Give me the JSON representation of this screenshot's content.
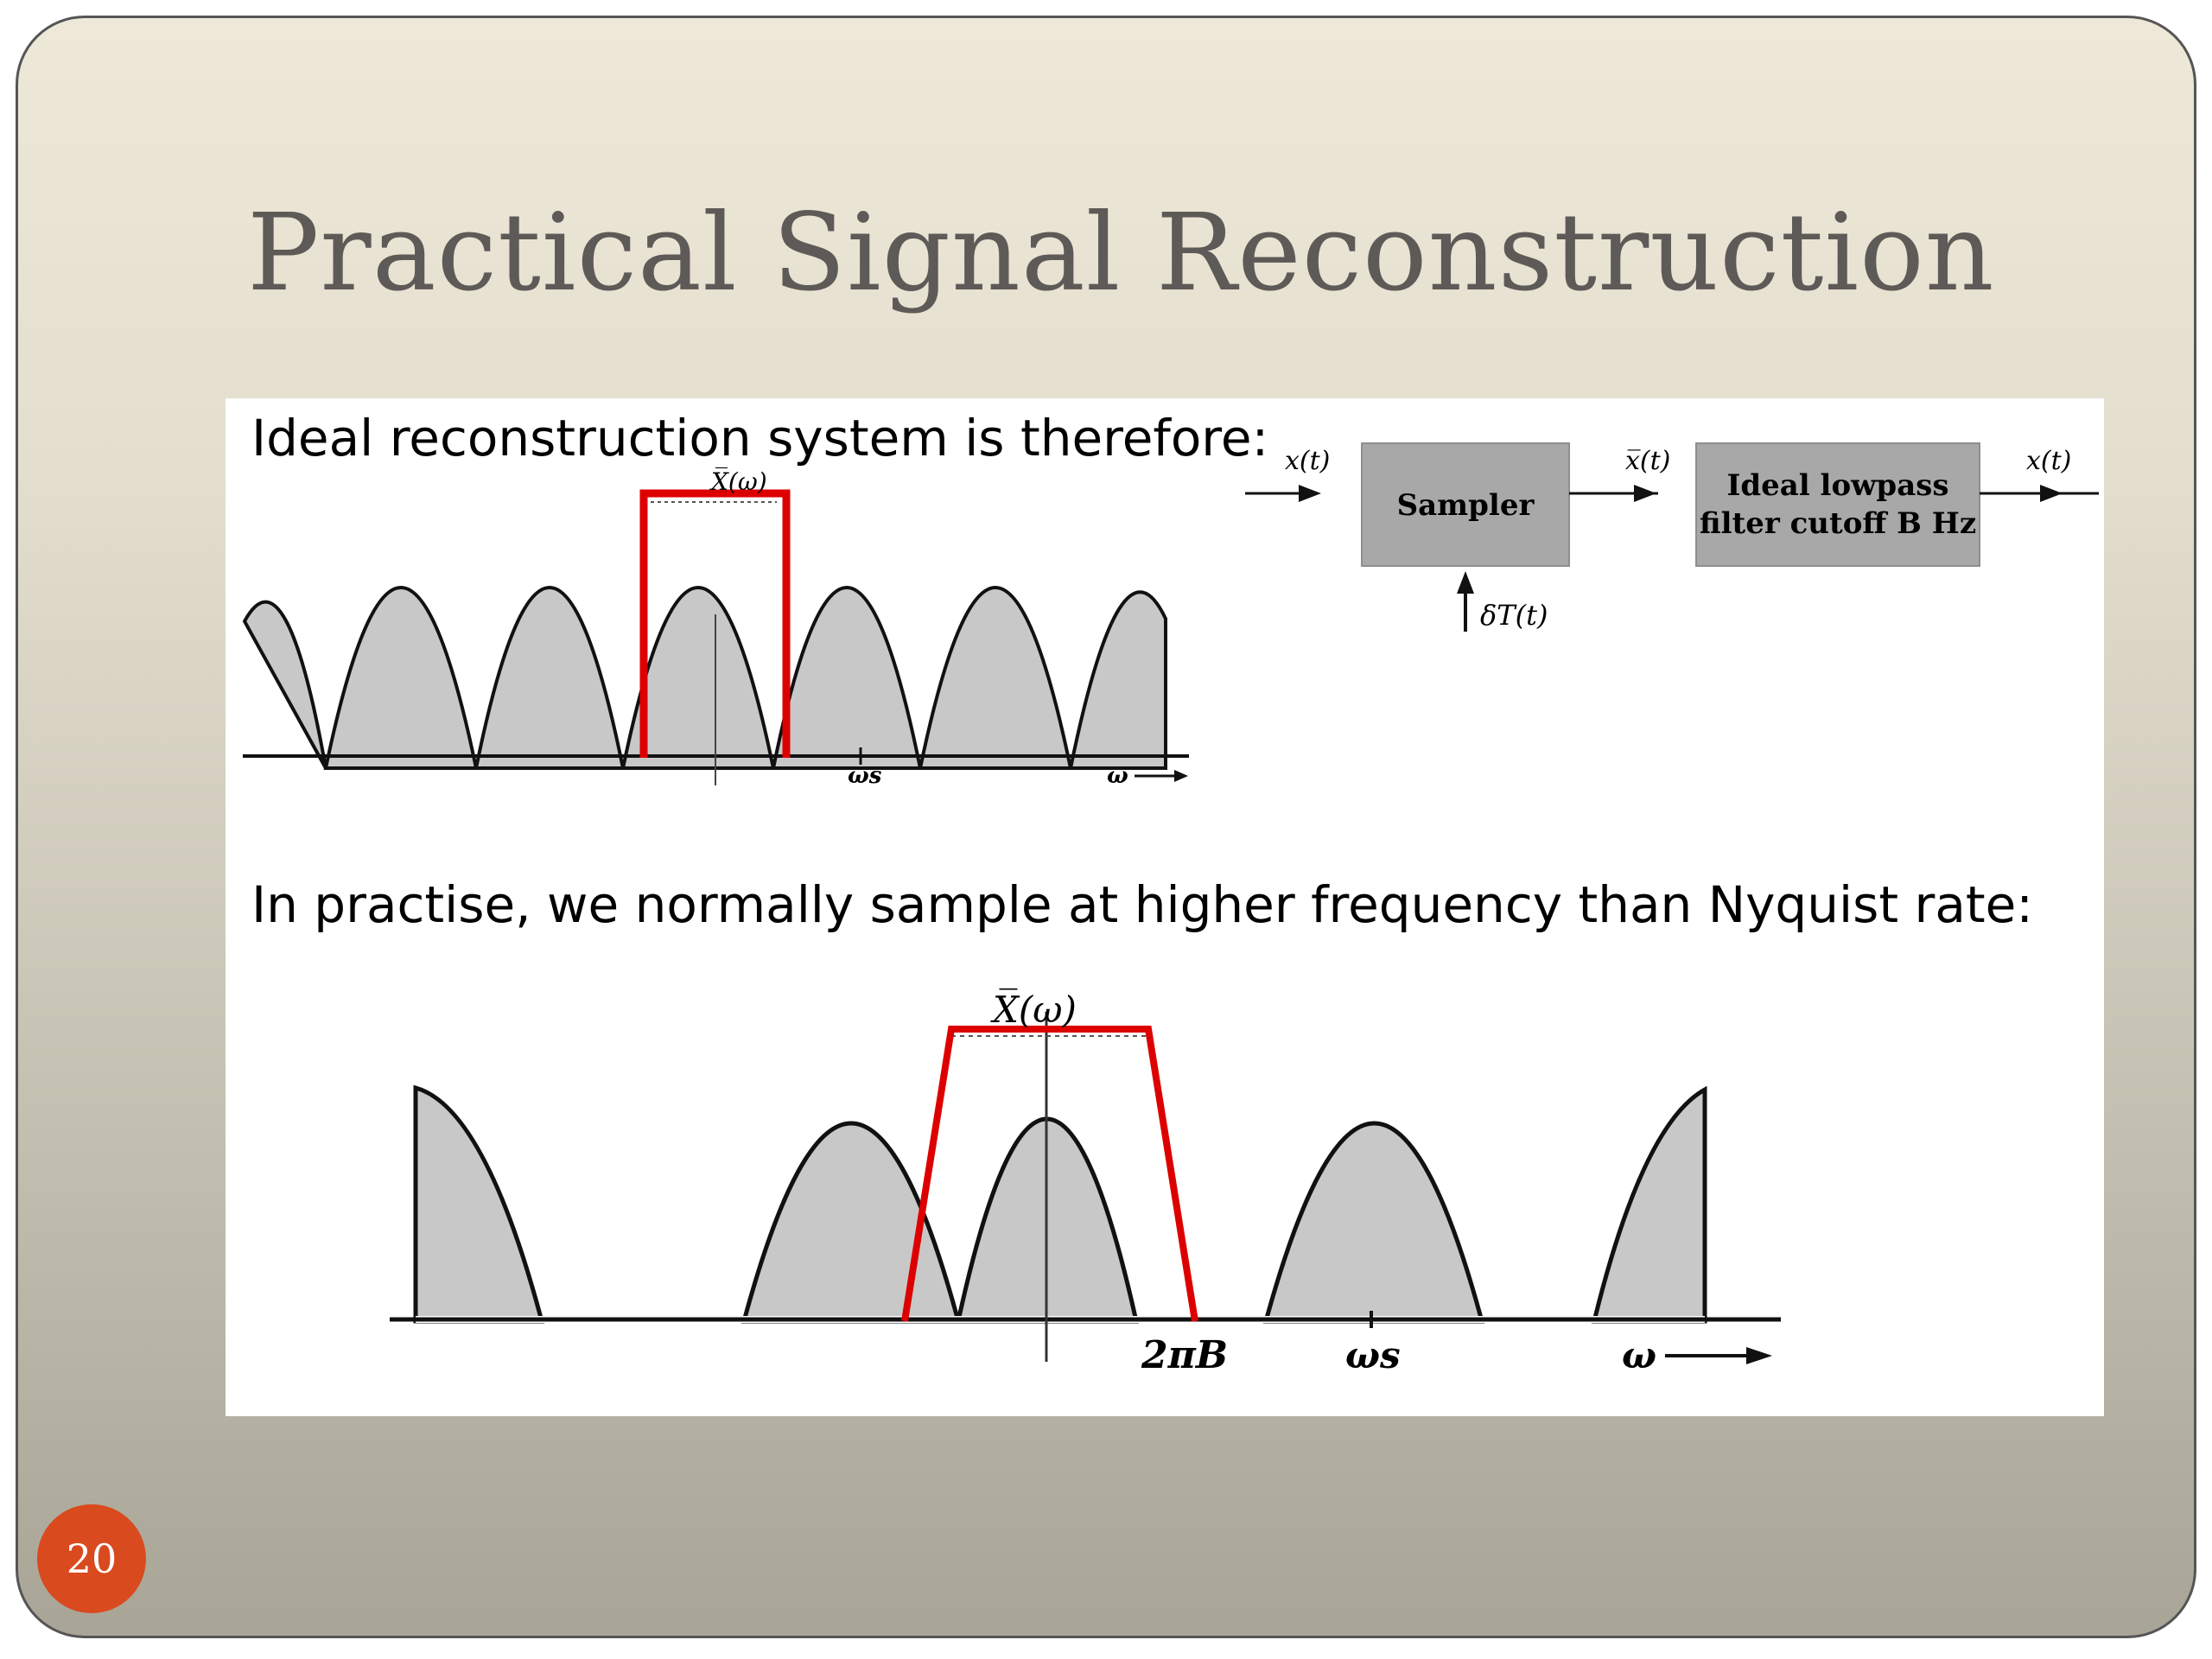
{
  "slide": {
    "title": "Practical Signal Reconstruction",
    "page_number": "20",
    "accent_color": "#d94a1e"
  },
  "panel": {
    "caption_top": "Ideal reconstruction system is therefore:",
    "caption_bottom": "In practise, we normally sample at higher frequency than Nyquist rate:"
  },
  "spectrum_top": {
    "label_spectrum": "X̅(ω)",
    "label_ws": "ωs",
    "label_w": "ω",
    "filter_color": "#dd0000"
  },
  "block_diagram": {
    "input": "x(t)",
    "sampler": "Sampler",
    "sampled": "x̅(t)",
    "filter_line1": "Ideal lowpass",
    "filter_line2": "filter cutoff B Hz",
    "output": "x(t)",
    "impulse": "δT(t)"
  },
  "spectrum_bottom": {
    "label_spectrum": "X̅(ω)",
    "label_2piB": "2πB",
    "label_ws": "ωs",
    "label_w": "ω",
    "filter_color": "#dd0000"
  }
}
